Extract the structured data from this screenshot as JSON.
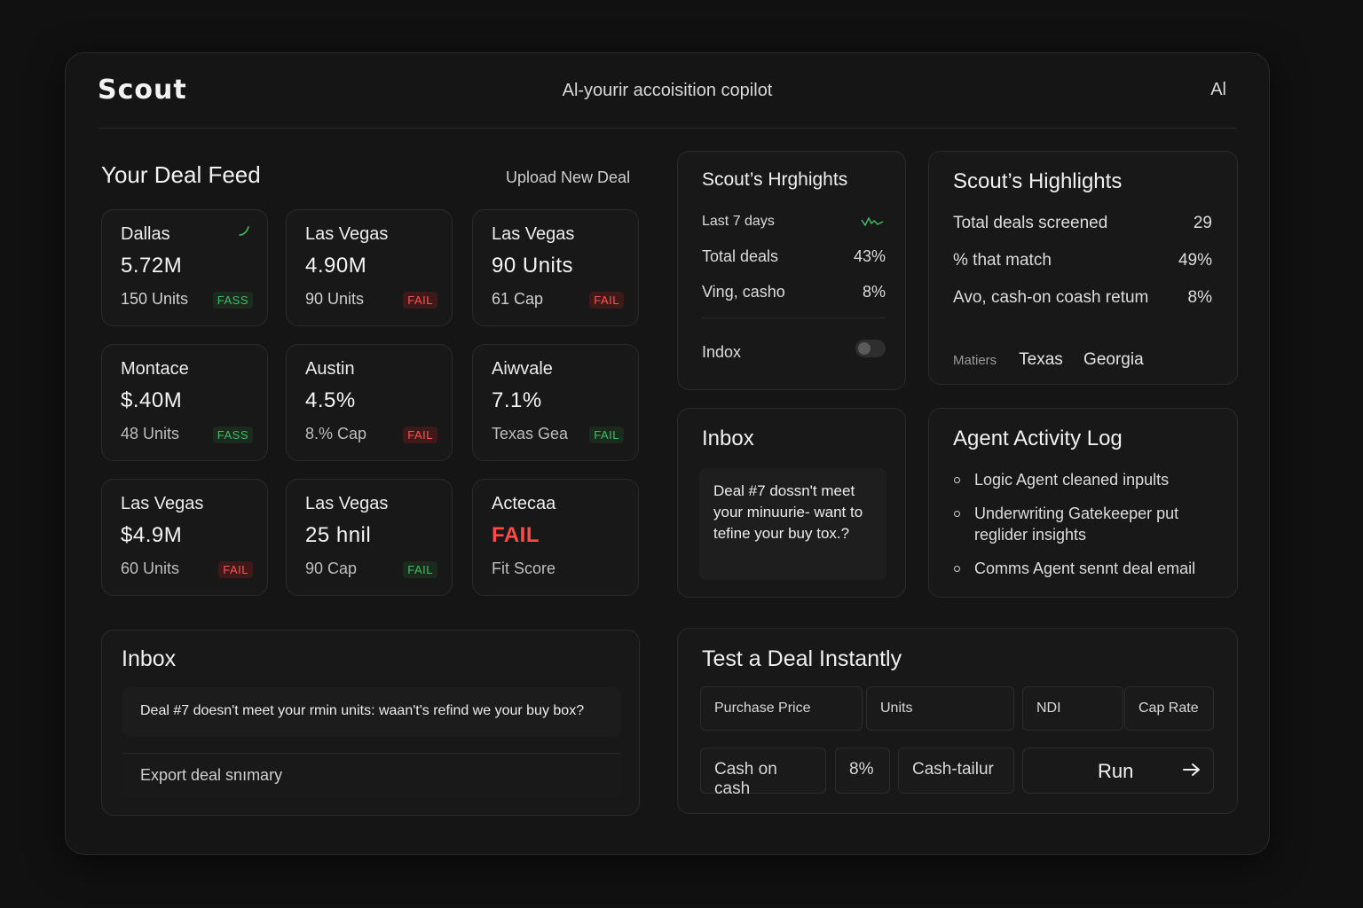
{
  "header": {
    "logo": "Scout",
    "tagline": "Al-yourir accoisition copilot",
    "ai_button": "Al"
  },
  "deal_feed": {
    "title": "Your Deal Feed",
    "upload_label": "Upload New Deal",
    "deals": [
      {
        "city": "Dallas",
        "value": "5.72M",
        "sub": "150  Units",
        "badge": "FASS",
        "status": "pass"
      },
      {
        "city": "Las Vegas",
        "value": "4.90M",
        "sub": "90  Units",
        "badge": "FAIL",
        "status": "fail"
      },
      {
        "city": "Las Vegas",
        "value": "90 Units",
        "sub": "61  Cap",
        "badge": "FAIL",
        "status": "fail"
      },
      {
        "city": "Montace",
        "value": "$.40M",
        "sub": "48  Units",
        "badge": "FASS",
        "status": "pass"
      },
      {
        "city": "Austin",
        "value": "4.5%",
        "sub": "8.% Cap",
        "badge": "FAIL",
        "status": "fail"
      },
      {
        "city": "Aiwvale",
        "value": "7.1%",
        "sub": "Texas Gea",
        "badge": "FAIL",
        "status": "pass"
      },
      {
        "city": "Las Vegas",
        "value": "$4.9M",
        "sub": "60  Units",
        "badge": "FAIL",
        "status": "fail"
      },
      {
        "city": "Las Vegas",
        "value": "25 hnil",
        "sub": "90  Cap",
        "badge": "FAIL",
        "status": "pass"
      },
      {
        "city": "Actecaa",
        "value": "FAIL",
        "sub": "Fit Score",
        "badge": "",
        "status": "none"
      }
    ]
  },
  "highlights_small": {
    "title": "Scout’s Hrghights",
    "period": "Last 7 days",
    "rows": [
      {
        "label": "Total deals",
        "value": "43%"
      },
      {
        "label": "Ving, casho",
        "value": "8%"
      }
    ],
    "inbox_toggle_label": "Indox"
  },
  "highlights": {
    "title": "Scout’s Highlights",
    "rows": [
      {
        "label": "Total deals screened",
        "value": "29"
      },
      {
        "label": "% that match",
        "value": "49%"
      },
      {
        "label": "Avo, cash-on coash retum",
        "value": "8%"
      }
    ],
    "markets_label": "Matiers",
    "markets": [
      "Texas",
      "Georgia"
    ]
  },
  "inbox_small": {
    "title": "Inbox",
    "message": "Deal #7 dossn't meet your minuurie- want to tefine your buy tox.?"
  },
  "activity_log": {
    "title": "Agent Activity Log",
    "items": [
      "Logic Agent cleaned inpults",
      "Underwriting Gatekeeper put reglider insights",
      "Comms Agent sennt deal email"
    ]
  },
  "inbox_big": {
    "title": "Inbox",
    "message": "Deal #7 doesn't meet your rmin units:  waan't's refind we your buy box?",
    "export_label": "Export deal snımary"
  },
  "test_deal": {
    "title": "Test a Deal Instantly",
    "fields_row1": [
      "Purchase Price",
      "Units",
      "NDI",
      "Cap Rate"
    ],
    "fields_row2": [
      "Cash on cash",
      "8%",
      "Cash-tailur"
    ],
    "run_label": "Run"
  },
  "colors": {
    "background": "#111111",
    "panel": "#151515",
    "card": "#181818",
    "pass": "#3fbf63",
    "fail": "#ff4a4a"
  }
}
